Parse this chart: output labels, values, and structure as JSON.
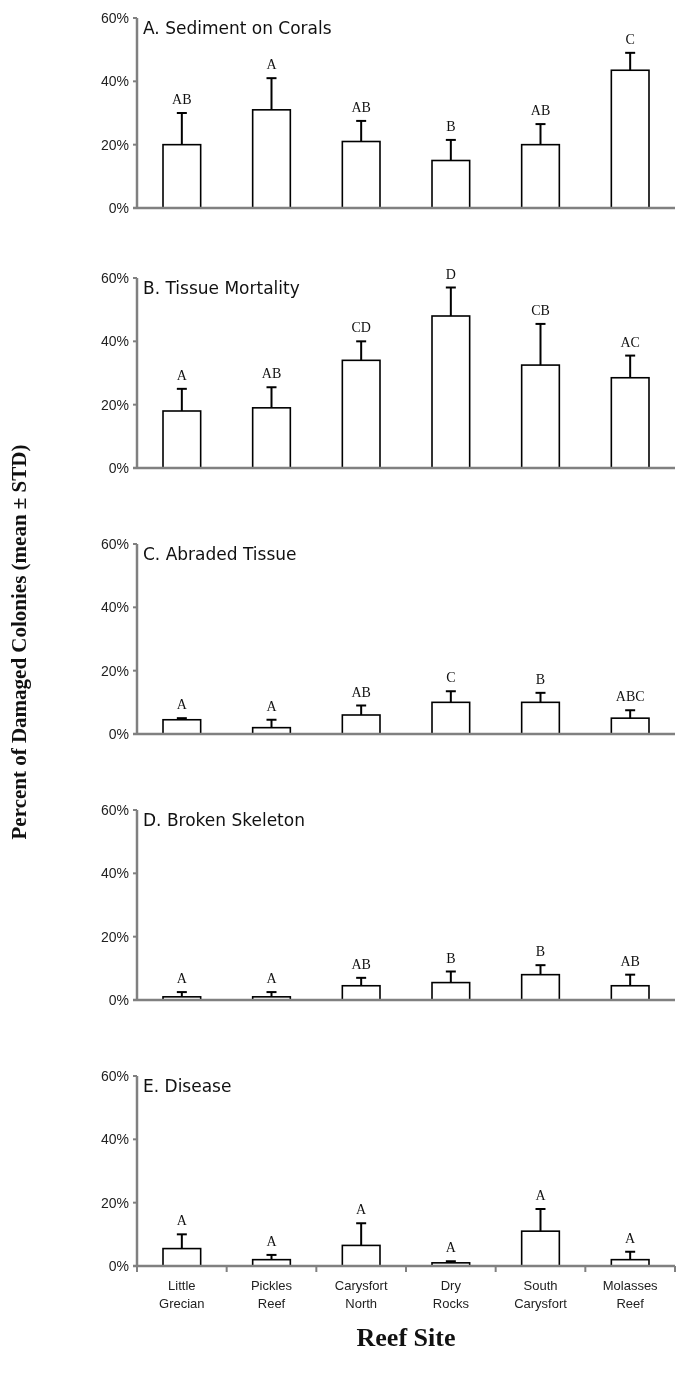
{
  "chart_data": [
    {
      "type": "bar",
      "title": "A. Sediment on Corals",
      "categories": [
        null,
        null,
        null,
        null,
        null,
        null
      ],
      "values": [
        20,
        31,
        21,
        15,
        20,
        43.5
      ],
      "errors": [
        [
          20,
          30
        ],
        [
          31,
          41
        ],
        [
          21,
          27.5
        ],
        [
          15,
          21.5
        ],
        [
          20,
          26.5
        ],
        [
          43.5,
          49
        ]
      ],
      "color": "#ffffff",
      "ylim": [
        0,
        60
      ],
      "yticks": [
        {
          "value": 0,
          "label": "0%"
        },
        {
          "value": 20,
          "label": "20%"
        },
        {
          "value": 40,
          "label": "40%"
        },
        {
          "value": 60,
          "label": "60%"
        }
      ],
      "tick_labels": "y",
      "annotations": [
        "AB",
        "A",
        "AB",
        "B",
        "AB",
        "C"
      ]
    },
    {
      "type": "bar",
      "title": "B. Tissue Mortality",
      "categories": [
        null,
        null,
        null,
        null,
        null,
        null
      ],
      "values": [
        18,
        19,
        34,
        48,
        32.5,
        28.5
      ],
      "errors": [
        [
          18,
          25
        ],
        [
          19,
          25.5
        ],
        [
          34,
          40
        ],
        [
          48,
          57
        ],
        [
          32.5,
          45.5
        ],
        [
          28.5,
          35.5
        ]
      ],
      "color": "#ffffff",
      "ylim": [
        0,
        60
      ],
      "yticks": [
        {
          "value": 0,
          "label": "0%"
        },
        {
          "value": 20,
          "label": "20%"
        },
        {
          "value": 40,
          "label": "40%"
        },
        {
          "value": 60,
          "label": "60%"
        }
      ],
      "tick_labels": "y",
      "annotations": [
        "A",
        "AB",
        "CD",
        "D",
        "CB",
        "AC"
      ]
    },
    {
      "type": "bar",
      "title": "C. Abraded Tissue",
      "ylabel": "Percent of Damaged Colonies (mean ± STD)",
      "categories": [
        null,
        null,
        null,
        null,
        null,
        null
      ],
      "values": [
        4.5,
        2,
        6,
        10,
        10,
        5
      ],
      "errors": [
        [
          4.5,
          5
        ],
        [
          2,
          4.5
        ],
        [
          6,
          9
        ],
        [
          10,
          13.5
        ],
        [
          10,
          13
        ],
        [
          5,
          7.5
        ]
      ],
      "color": "#ffffff",
      "ylim": [
        0,
        60
      ],
      "yticks": [
        {
          "value": 0,
          "label": "0%"
        },
        {
          "value": 20,
          "label": "20%"
        },
        {
          "value": 40,
          "label": "40%"
        },
        {
          "value": 60,
          "label": "60%"
        }
      ],
      "tick_labels": "y",
      "annotations": [
        "A",
        "A",
        "AB",
        "C",
        "B",
        "ABC"
      ]
    },
    {
      "type": "bar",
      "title": "D. Broken Skeleton",
      "categories": [
        null,
        null,
        null,
        null,
        null,
        null
      ],
      "values": [
        1,
        1,
        4.5,
        5.5,
        8,
        4.5
      ],
      "errors": [
        [
          1,
          2.5
        ],
        [
          1,
          2.5
        ],
        [
          4.5,
          7
        ],
        [
          5.5,
          9
        ],
        [
          8,
          11
        ],
        [
          4.5,
          8
        ]
      ],
      "color": "#ffffff",
      "ylim": [
        0,
        60
      ],
      "yticks": [
        {
          "value": 0,
          "label": "0%"
        },
        {
          "value": 20,
          "label": "20%"
        },
        {
          "value": 40,
          "label": "40%"
        },
        {
          "value": 60,
          "label": "60%"
        }
      ],
      "tick_labels": "y",
      "annotations": [
        "A",
        "A",
        "AB",
        "B",
        "B",
        "AB"
      ]
    },
    {
      "type": "bar",
      "title": "E. Disease",
      "xlabel": "Reef Site",
      "categories": [
        "Little Grecian",
        "Pickles Reef",
        "Carysfort North",
        "Dry Rocks",
        "South Carysfort",
        "Molasses Reef"
      ],
      "values": [
        5.5,
        2,
        6.5,
        1,
        11,
        2
      ],
      "errors": [
        [
          5.5,
          10
        ],
        [
          2,
          3.5
        ],
        [
          6.5,
          13.5
        ],
        [
          1,
          1.5
        ],
        [
          11,
          18
        ],
        [
          2,
          4.5
        ]
      ],
      "color": "#ffffff",
      "ylim": [
        0,
        60
      ],
      "yticks": [
        {
          "value": 0,
          "label": "0%"
        },
        {
          "value": 20,
          "label": "20%"
        },
        {
          "value": 40,
          "label": "40%"
        },
        {
          "value": 60,
          "label": "60%"
        }
      ],
      "annotations": [
        "A",
        "A",
        "A",
        "A",
        "A",
        "A"
      ]
    }
  ]
}
